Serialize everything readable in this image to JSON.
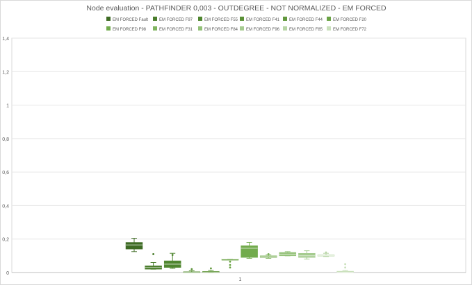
{
  "chart_data": {
    "type": "boxplot",
    "title": "Node evaluation - PATHFINDER 0,003 - OUTDEGREE  - NOT NORMALIZED - EM FORCED",
    "xlabel": "",
    "ylabel": "",
    "categories": [
      "1"
    ],
    "ylim": [
      0,
      1.4
    ],
    "yticks": [
      "0",
      "0,2",
      "0,4",
      "0,6",
      "0,8",
      "1",
      "1,2",
      "1,4"
    ],
    "grid": "horizontal",
    "legend_position": "top",
    "series": [
      {
        "name": "EM FORCED Fault",
        "color": "#3e6b24",
        "min": 0.125,
        "q1": 0.14,
        "median": 0.165,
        "q3": 0.18,
        "max": 0.205,
        "outliers": []
      },
      {
        "name": "EM FORCED F97",
        "color": "#4a7d2c",
        "min": 0.02,
        "q1": 0.02,
        "median": 0.03,
        "q3": 0.04,
        "max": 0.06,
        "outliers": [
          0.11
        ]
      },
      {
        "name": "EM FORCED F55",
        "color": "#4f862f",
        "min": 0.025,
        "q1": 0.03,
        "median": 0.05,
        "q3": 0.07,
        "max": 0.115,
        "outliers": [
          0.105
        ]
      },
      {
        "name": "EM FORCED F41",
        "color": "#5a9136",
        "min": 0.0,
        "q1": 0.0,
        "median": 0.002,
        "q3": 0.005,
        "max": 0.01,
        "outliers": [
          0.02
        ]
      },
      {
        "name": "EM FORCED F44",
        "color": "#62983d",
        "min": 0.0,
        "q1": 0.0,
        "median": 0.003,
        "q3": 0.007,
        "max": 0.012,
        "outliers": [
          0.025
        ]
      },
      {
        "name": "EM FORCED F20",
        "color": "#6aa344",
        "min": 0.08,
        "q1": 0.08,
        "median": 0.08,
        "q3": 0.08,
        "max": 0.08,
        "outliers": [
          0.065,
          0.045,
          0.03
        ]
      },
      {
        "name": "EM FORCED F98",
        "color": "#72ab4d",
        "min": 0.085,
        "q1": 0.09,
        "median": 0.145,
        "q3": 0.16,
        "max": 0.18,
        "outliers": []
      },
      {
        "name": "EM FORCED F31",
        "color": "#7fb45e",
        "min": 0.085,
        "q1": 0.09,
        "median": 0.095,
        "q3": 0.1,
        "max": 0.105,
        "outliers": [
          0.11
        ]
      },
      {
        "name": "EM FORCED F84",
        "color": "#93c178",
        "min": 0.1,
        "q1": 0.1,
        "median": 0.11,
        "q3": 0.12,
        "max": 0.125,
        "outliers": []
      },
      {
        "name": "EM FORCED F96",
        "color": "#a5cb8f",
        "min": 0.08,
        "q1": 0.09,
        "median": 0.1,
        "q3": 0.115,
        "max": 0.13,
        "outliers": []
      },
      {
        "name": "EM FORCED F85",
        "color": "#b7d5a5",
        "min": 0.095,
        "q1": 0.098,
        "median": 0.102,
        "q3": 0.105,
        "max": 0.115,
        "outliers": [
          0.12
        ]
      },
      {
        "name": "EM FORCED F72",
        "color": "#c9e0bb",
        "min": 0.0,
        "q1": 0.0,
        "median": 0.002,
        "q3": 0.008,
        "max": 0.012,
        "outliers": [
          0.05,
          0.03
        ]
      }
    ]
  }
}
